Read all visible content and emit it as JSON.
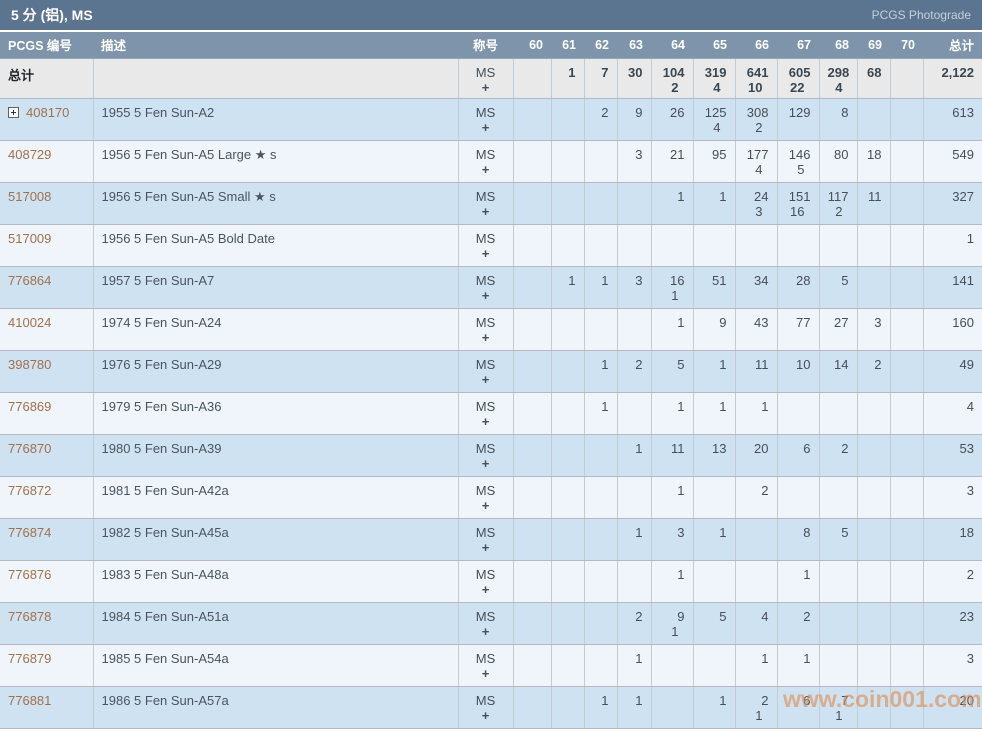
{
  "title_bar": {
    "title": "5 分 (铝), MS",
    "link": "PCGS Photograde"
  },
  "table": {
    "columns": [
      "PCGS 编号",
      "描述",
      "称号",
      "60",
      "61",
      "62",
      "63",
      "64",
      "65",
      "66",
      "67",
      "68",
      "69",
      "70",
      "总计"
    ],
    "designation_line1": "MS",
    "designation_line2": "+",
    "total_row": {
      "label": "总计",
      "desc": "",
      "ms": [
        "",
        "1",
        "7",
        "30",
        "104",
        "319",
        "641",
        "605",
        "298",
        "68",
        ""
      ],
      "plus": [
        "",
        "",
        "",
        "",
        "2",
        "4",
        "10",
        "22",
        "4",
        "",
        ""
      ],
      "total": "2,122"
    },
    "rows": [
      {
        "number": "408170",
        "expandable": true,
        "desc": "1955 5 Fen Sun-A2",
        "ms": [
          "",
          "",
          "2",
          "9",
          "26",
          "125",
          "308",
          "129",
          "8",
          "",
          ""
        ],
        "plus": [
          "",
          "",
          "",
          "",
          "",
          "4",
          "2",
          "",
          "",
          "",
          ""
        ],
        "total": "613"
      },
      {
        "number": "408729",
        "expandable": false,
        "desc": "1956 5 Fen Sun-A5 Large ★ s",
        "ms": [
          "",
          "",
          "",
          "3",
          "21",
          "95",
          "177",
          "146",
          "80",
          "18",
          ""
        ],
        "plus": [
          "",
          "",
          "",
          "",
          "",
          "",
          "4",
          "5",
          "",
          "",
          ""
        ],
        "total": "549"
      },
      {
        "number": "517008",
        "expandable": false,
        "desc": "1956 5 Fen Sun-A5 Small ★ s",
        "ms": [
          "",
          "",
          "",
          "",
          "1",
          "1",
          "24",
          "151",
          "117",
          "11",
          ""
        ],
        "plus": [
          "",
          "",
          "",
          "",
          "",
          "",
          "3",
          "16",
          "2",
          "",
          ""
        ],
        "total": "327"
      },
      {
        "number": "517009",
        "expandable": false,
        "desc": "1956 5 Fen Sun-A5 Bold Date",
        "ms": [
          "",
          "",
          "",
          "",
          "",
          "",
          "",
          "",
          "",
          "",
          ""
        ],
        "plus": [
          "",
          "",
          "",
          "",
          "",
          "",
          "",
          "",
          "",
          "",
          ""
        ],
        "total": "1"
      },
      {
        "number": "776864",
        "expandable": false,
        "desc": "1957 5 Fen Sun-A7",
        "ms": [
          "",
          "1",
          "1",
          "3",
          "16",
          "51",
          "34",
          "28",
          "5",
          "",
          ""
        ],
        "plus": [
          "",
          "",
          "",
          "",
          "1",
          "",
          "",
          "",
          "",
          "",
          ""
        ],
        "total": "141"
      },
      {
        "number": "410024",
        "expandable": false,
        "desc": "1974 5 Fen Sun-A24",
        "ms": [
          "",
          "",
          "",
          "",
          "1",
          "9",
          "43",
          "77",
          "27",
          "3",
          ""
        ],
        "plus": [
          "",
          "",
          "",
          "",
          "",
          "",
          "",
          "",
          "",
          "",
          ""
        ],
        "total": "160"
      },
      {
        "number": "398780",
        "expandable": false,
        "desc": "1976 5 Fen Sun-A29",
        "ms": [
          "",
          "",
          "1",
          "2",
          "5",
          "1",
          "11",
          "10",
          "14",
          "2",
          ""
        ],
        "plus": [
          "",
          "",
          "",
          "",
          "",
          "",
          "",
          "",
          "",
          "",
          ""
        ],
        "total": "49"
      },
      {
        "number": "776869",
        "expandable": false,
        "desc": "1979 5 Fen Sun-A36",
        "ms": [
          "",
          "",
          "1",
          "",
          "1",
          "1",
          "1",
          "",
          "",
          "",
          ""
        ],
        "plus": [
          "",
          "",
          "",
          "",
          "",
          "",
          "",
          "",
          "",
          "",
          ""
        ],
        "total": "4"
      },
      {
        "number": "776870",
        "expandable": false,
        "desc": "1980 5 Fen Sun-A39",
        "ms": [
          "",
          "",
          "",
          "1",
          "11",
          "13",
          "20",
          "6",
          "2",
          "",
          ""
        ],
        "plus": [
          "",
          "",
          "",
          "",
          "",
          "",
          "",
          "",
          "",
          "",
          ""
        ],
        "total": "53"
      },
      {
        "number": "776872",
        "expandable": false,
        "desc": "1981 5 Fen Sun-A42a",
        "ms": [
          "",
          "",
          "",
          "",
          "1",
          "",
          "2",
          "",
          "",
          "",
          ""
        ],
        "plus": [
          "",
          "",
          "",
          "",
          "",
          "",
          "",
          "",
          "",
          "",
          ""
        ],
        "total": "3"
      },
      {
        "number": "776874",
        "expandable": false,
        "desc": "1982 5 Fen Sun-A45a",
        "ms": [
          "",
          "",
          "",
          "1",
          "3",
          "1",
          "",
          "8",
          "5",
          "",
          ""
        ],
        "plus": [
          "",
          "",
          "",
          "",
          "",
          "",
          "",
          "",
          "",
          "",
          ""
        ],
        "total": "18"
      },
      {
        "number": "776876",
        "expandable": false,
        "desc": "1983 5 Fen Sun-A48a",
        "ms": [
          "",
          "",
          "",
          "",
          "1",
          "",
          "",
          "1",
          "",
          "",
          ""
        ],
        "plus": [
          "",
          "",
          "",
          "",
          "",
          "",
          "",
          "",
          "",
          "",
          ""
        ],
        "total": "2"
      },
      {
        "number": "776878",
        "expandable": false,
        "desc": "1984 5 Fen Sun-A51a",
        "ms": [
          "",
          "",
          "",
          "2",
          "9",
          "5",
          "4",
          "2",
          "",
          "",
          ""
        ],
        "plus": [
          "",
          "",
          "",
          "",
          "1",
          "",
          "",
          "",
          "",
          "",
          ""
        ],
        "total": "23"
      },
      {
        "number": "776879",
        "expandable": false,
        "desc": "1985 5 Fen Sun-A54a",
        "ms": [
          "",
          "",
          "",
          "1",
          "",
          "",
          "1",
          "1",
          "",
          "",
          ""
        ],
        "plus": [
          "",
          "",
          "",
          "",
          "",
          "",
          "",
          "",
          "",
          "",
          ""
        ],
        "total": "3"
      },
      {
        "number": "776881",
        "expandable": false,
        "desc": "1986 5 Fen Sun-A57a",
        "ms": [
          "",
          "",
          "1",
          "1",
          "",
          "1",
          "2",
          "6",
          "7",
          "",
          ""
        ],
        "plus": [
          "",
          "",
          "",
          "",
          "",
          "",
          "1",
          "",
          "1",
          "",
          ""
        ],
        "total": "20"
      }
    ]
  },
  "watermark": "www.coin001.com",
  "colors": {
    "title_bar_bg": "#5b7490",
    "header_bg": "#7d94ab",
    "row_blue": "#cfe2f2",
    "row_white": "#eff5fa",
    "total_row_bg": "#e9e9e9",
    "link": "#a1714d",
    "watermark": "#dd8a4d"
  }
}
